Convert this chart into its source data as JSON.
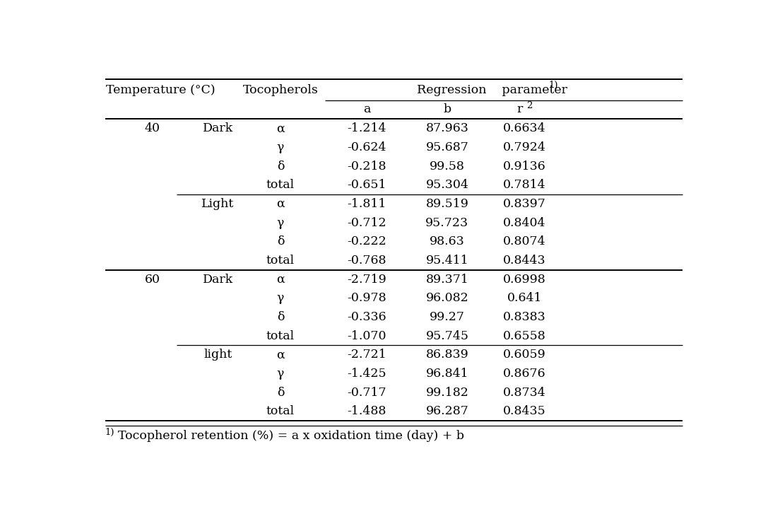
{
  "footnote_prefix": "1)",
  "footnote_text": "Tocopherol retention (%) = a x oxidation time (day) + b",
  "rows": [
    {
      "temp": "40",
      "condition": "Dark",
      "toco": "α",
      "a": "-1.214",
      "b": "87.963",
      "r2": "0.6634"
    },
    {
      "temp": "",
      "condition": "",
      "toco": "γ",
      "a": "-0.624",
      "b": "95.687",
      "r2": "0.7924"
    },
    {
      "temp": "",
      "condition": "",
      "toco": "δ",
      "a": "-0.218",
      "b": "99.58",
      "r2": "0.9136"
    },
    {
      "temp": "",
      "condition": "",
      "toco": "total",
      "a": "-0.651",
      "b": "95.304",
      "r2": "0.7814"
    },
    {
      "temp": "",
      "condition": "Light",
      "toco": "α",
      "a": "-1.811",
      "b": "89.519",
      "r2": "0.8397"
    },
    {
      "temp": "",
      "condition": "",
      "toco": "γ",
      "a": "-0.712",
      "b": "95.723",
      "r2": "0.8404"
    },
    {
      "temp": "",
      "condition": "",
      "toco": "δ",
      "a": "-0.222",
      "b": "98.63",
      "r2": "0.8074"
    },
    {
      "temp": "",
      "condition": "",
      "toco": "total",
      "a": "-0.768",
      "b": "95.411",
      "r2": "0.8443"
    },
    {
      "temp": "60",
      "condition": "Dark",
      "toco": "α",
      "a": "-2.719",
      "b": "89.371",
      "r2": "0.6998"
    },
    {
      "temp": "",
      "condition": "",
      "toco": "γ",
      "a": "-0.978",
      "b": "96.082",
      "r2": "0.641"
    },
    {
      "temp": "",
      "condition": "",
      "toco": "δ",
      "a": "-0.336",
      "b": "99.27",
      "r2": "0.8383"
    },
    {
      "temp": "",
      "condition": "",
      "toco": "total",
      "a": "-1.070",
      "b": "95.745",
      "r2": "0.6558"
    },
    {
      "temp": "",
      "condition": "light",
      "toco": "α",
      "a": "-2.721",
      "b": "86.839",
      "r2": "0.6059"
    },
    {
      "temp": "",
      "condition": "",
      "toco": "γ",
      "a": "-1.425",
      "b": "96.841",
      "r2": "0.8676"
    },
    {
      "temp": "",
      "condition": "",
      "toco": "δ",
      "a": "-0.717",
      "b": "99.182",
      "r2": "0.8734"
    },
    {
      "temp": "",
      "condition": "",
      "toco": "total",
      "a": "-1.488",
      "b": "96.287",
      "r2": "0.8435"
    }
  ],
  "background_color": "#ffffff",
  "text_color": "#000000",
  "font_size": 12.5
}
